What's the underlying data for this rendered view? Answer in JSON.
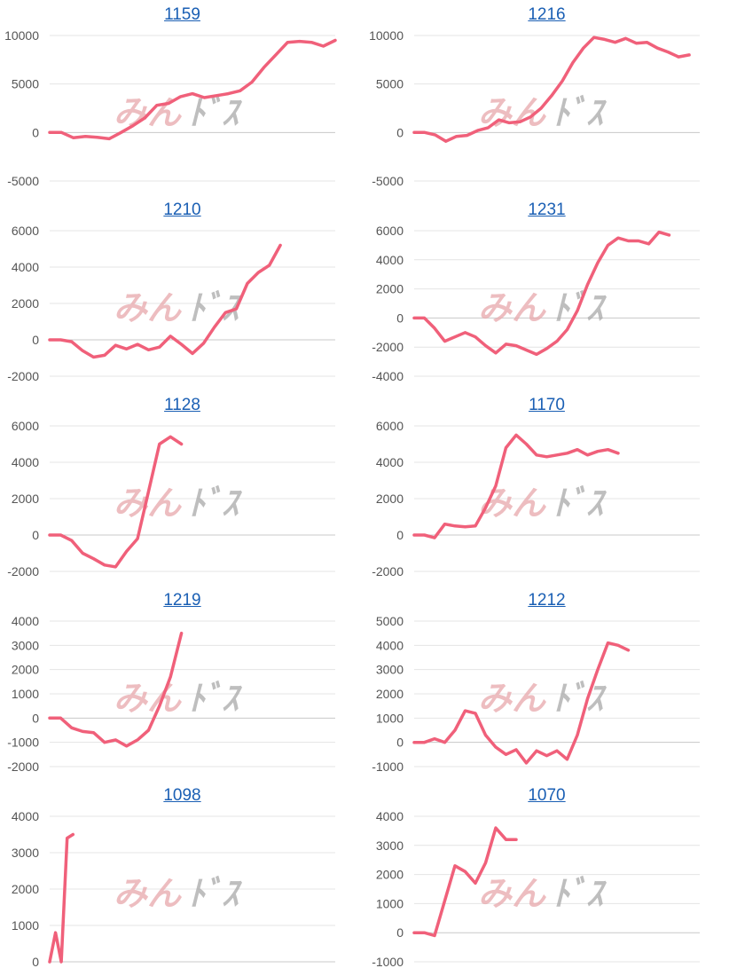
{
  "watermark": {
    "part1": "みん",
    "part2": "ﾄﾞｽ"
  },
  "colors": {
    "line": "#f0607a",
    "grid": "#e4e4e4",
    "title": "#1a5fb4"
  },
  "chart_data": [
    {
      "type": "line",
      "title": "1159",
      "ylim": [
        -5000,
        10000
      ],
      "yticks": [
        -5000,
        0,
        5000,
        10000
      ],
      "series": [
        {
          "values": [
            0,
            0,
            -550,
            -400,
            -500,
            -650,
            0,
            700,
            1500,
            2800,
            3000,
            3700,
            4000,
            3600,
            3800,
            4000,
            4300,
            5200,
            6700,
            8000,
            9300,
            9400,
            9300,
            8900,
            9500
          ]
        }
      ]
    },
    {
      "type": "line",
      "title": "1216",
      "ylim": [
        -5000,
        10000
      ],
      "yticks": [
        -5000,
        0,
        5000,
        10000
      ],
      "series": [
        {
          "values": [
            0,
            0,
            -250,
            -900,
            -400,
            -300,
            200,
            500,
            1300,
            1000,
            1100,
            1600,
            2500,
            3800,
            5300,
            7200,
            8700,
            9800,
            9600,
            9300,
            9700,
            9200,
            9300,
            8700,
            8300,
            7800,
            8000
          ]
        }
      ]
    },
    {
      "type": "line",
      "title": "1210",
      "ylim": [
        -2000,
        6000
      ],
      "yticks": [
        -2000,
        0,
        2000,
        4000,
        6000
      ],
      "series": [
        {
          "values": [
            0,
            0,
            -100,
            -600,
            -950,
            -850,
            -300,
            -500,
            -250,
            -550,
            -400,
            200,
            -250,
            -750,
            -200,
            700,
            1500,
            1700,
            3100,
            3700,
            4100,
            5200
          ]
        }
      ]
    },
    {
      "type": "line",
      "title": "1231",
      "ylim": [
        -4000,
        6000
      ],
      "yticks": [
        -4000,
        -2000,
        0,
        2000,
        4000,
        6000
      ],
      "series": [
        {
          "values": [
            0,
            0,
            -700,
            -1600,
            -1300,
            -1000,
            -1300,
            -1900,
            -2400,
            -1800,
            -1900,
            -2200,
            -2500,
            -2100,
            -1600,
            -800,
            500,
            2300,
            3800,
            5000,
            5500,
            5300,
            5300,
            5100,
            5900,
            5700
          ]
        }
      ]
    },
    {
      "type": "line",
      "title": "1128",
      "ylim": [
        -2000,
        6000
      ],
      "yticks": [
        -2000,
        0,
        2000,
        4000,
        6000
      ],
      "series": [
        {
          "values": [
            0,
            0,
            -300,
            -1000,
            -1300,
            -1650,
            -1750,
            -900,
            -200,
            2400,
            5000,
            5400,
            5000
          ]
        }
      ]
    },
    {
      "type": "line",
      "title": "1170",
      "ylim": [
        -2000,
        6000
      ],
      "yticks": [
        -2000,
        0,
        2000,
        4000,
        6000
      ],
      "series": [
        {
          "values": [
            0,
            0,
            -150,
            600,
            500,
            450,
            500,
            1500,
            2700,
            4800,
            5500,
            5000,
            4400,
            4300,
            4400,
            4500,
            4700,
            4400,
            4600,
            4700,
            4500
          ]
        }
      ]
    },
    {
      "type": "line",
      "title": "1219",
      "ylim": [
        -2000,
        4000
      ],
      "yticks": [
        -2000,
        -1000,
        0,
        1000,
        2000,
        3000,
        4000
      ],
      "series": [
        {
          "values": [
            0,
            0,
            -400,
            -550,
            -600,
            -1000,
            -900,
            -1150,
            -900,
            -500,
            500,
            1700,
            3500
          ]
        }
      ]
    },
    {
      "type": "line",
      "title": "1212",
      "ylim": [
        -1000,
        5000
      ],
      "yticks": [
        -1000,
        0,
        1000,
        2000,
        3000,
        4000,
        5000
      ],
      "series": [
        {
          "values": [
            0,
            0,
            150,
            0,
            500,
            1300,
            1200,
            300,
            -200,
            -500,
            -300,
            -850,
            -350,
            -550,
            -350,
            -700,
            300,
            1800,
            3000,
            4100,
            4000,
            3800
          ]
        }
      ]
    },
    {
      "type": "line",
      "title": "1098",
      "ylim": [
        0,
        4000
      ],
      "yticks": [
        0,
        1000,
        2000,
        3000,
        4000
      ],
      "series": [
        {
          "values": [
            0,
            800,
            0,
            3400,
            3500
          ]
        }
      ]
    },
    {
      "type": "line",
      "title": "1070",
      "ylim": [
        -1000,
        4000
      ],
      "yticks": [
        -1000,
        0,
        1000,
        2000,
        3000,
        4000
      ],
      "series": [
        {
          "values": [
            0,
            0,
            -100,
            1100,
            2300,
            2100,
            1700,
            2400,
            3600,
            3200,
            3200
          ]
        }
      ]
    }
  ]
}
